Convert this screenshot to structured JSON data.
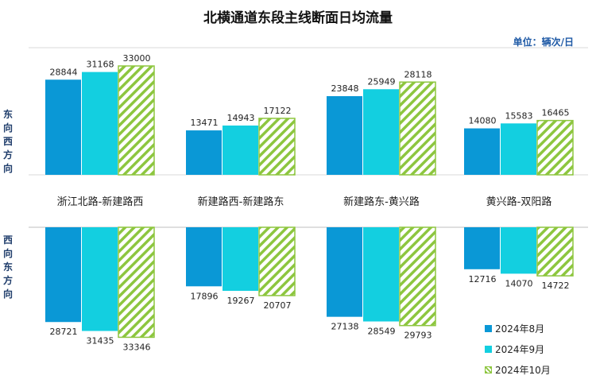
{
  "title": "北横通道东段主线断面日均流量",
  "unit": "单位：辆次/日",
  "direction_labels": {
    "east_to_west": "东向西方向",
    "west_to_east": "西向东方向"
  },
  "colors": {
    "aug": "#0a98d6",
    "sep": "#13cfe0",
    "oct_stripe": "#8dc63f"
  },
  "chart_data": {
    "type": "bar",
    "title": "北横通道东段主线断面日均流量",
    "unit": "单位：辆次/日",
    "categories": [
      "浙江北路-新建路西",
      "新建路西-新建路东",
      "新建路东-黄兴路",
      "黄兴路-双阳路"
    ],
    "legend_position": "bottom-right",
    "panels": [
      {
        "name": "东向西方向",
        "series": [
          {
            "name": "2024年8月",
            "values": [
              28844,
              13471,
              23848,
              14080
            ]
          },
          {
            "name": "2024年9月",
            "values": [
              31168,
              14943,
              25949,
              15583
            ]
          },
          {
            "name": "2024年10月",
            "values": [
              33000,
              17122,
              28118,
              16465
            ]
          }
        ]
      },
      {
        "name": "西向东方向",
        "series": [
          {
            "name": "2024年8月",
            "values": [
              28721,
              17896,
              27138,
              12716
            ]
          },
          {
            "name": "2024年9月",
            "values": [
              31435,
              19267,
              28549,
              14070
            ]
          },
          {
            "name": "2024年10月",
            "values": [
              33346,
              20707,
              29793,
              14722
            ]
          }
        ]
      }
    ]
  }
}
